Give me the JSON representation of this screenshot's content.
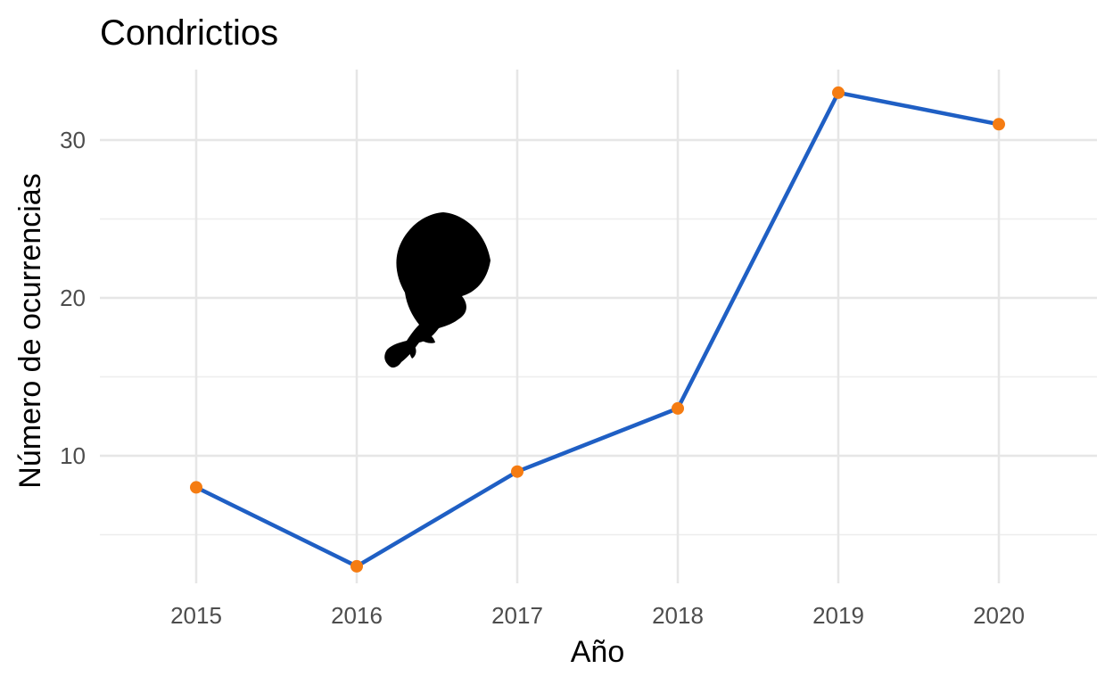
{
  "chart_data": {
    "type": "line",
    "title": "Condrictios",
    "xlabel": "Año",
    "ylabel": "Número de ocurrencias",
    "x": [
      2015,
      2016,
      2017,
      2018,
      2019,
      2020
    ],
    "x_tick_labels": [
      "2015",
      "2016",
      "2017",
      "2018",
      "2019",
      "2020"
    ],
    "y": [
      8,
      3,
      9,
      13,
      33,
      31
    ],
    "y_ticks": [
      10,
      20,
      30
    ],
    "y_tick_labels": [
      "10",
      "20",
      "30"
    ],
    "ylim": [
      1.5,
      34.5
    ],
    "grid": true,
    "legend": "none",
    "line_color": "#1f5fc4",
    "point_color": "#f57c12",
    "icon": "chondrichthyan-silhouette-icon"
  }
}
